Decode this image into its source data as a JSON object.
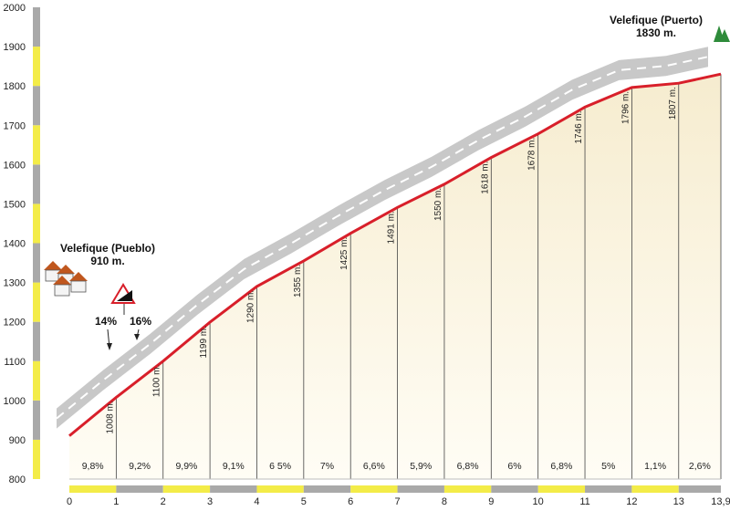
{
  "chart_data": {
    "type": "area",
    "title": "",
    "xlabel": "",
    "ylabel": "",
    "ylim": [
      800,
      2000
    ],
    "xlim": [
      0,
      13.9
    ],
    "y_ticks": [
      800,
      900,
      1000,
      1100,
      1200,
      1300,
      1400,
      1500,
      1600,
      1700,
      1800,
      1900,
      2000
    ],
    "x_ticks": [
      {
        "x": 0,
        "label": "0"
      },
      {
        "x": 1,
        "label": "1"
      },
      {
        "x": 2,
        "label": "2"
      },
      {
        "x": 3,
        "label": "3"
      },
      {
        "x": 4,
        "label": "4"
      },
      {
        "x": 5,
        "label": "5"
      },
      {
        "x": 6,
        "label": "6"
      },
      {
        "x": 7,
        "label": "7"
      },
      {
        "x": 8,
        "label": "8"
      },
      {
        "x": 9,
        "label": "9"
      },
      {
        "x": 10,
        "label": "10"
      },
      {
        "x": 11,
        "label": "11"
      },
      {
        "x": 12,
        "label": "12"
      },
      {
        "x": 13,
        "label": "13"
      },
      {
        "x": 13.9,
        "label": "13,9"
      }
    ],
    "profile": [
      {
        "x": 0,
        "y": 910,
        "label": ""
      },
      {
        "x": 1,
        "y": 1008,
        "label": "1008 m."
      },
      {
        "x": 2,
        "y": 1100,
        "label": "1100 m."
      },
      {
        "x": 3,
        "y": 1199,
        "label": "1199 m."
      },
      {
        "x": 4,
        "y": 1290,
        "label": "1290 m."
      },
      {
        "x": 5,
        "y": 1355,
        "label": "1355 m."
      },
      {
        "x": 6,
        "y": 1425,
        "label": "1425 m."
      },
      {
        "x": 7,
        "y": 1491,
        "label": "1491 m."
      },
      {
        "x": 8,
        "y": 1550,
        "label": "1550 m."
      },
      {
        "x": 9,
        "y": 1618,
        "label": "1618 m."
      },
      {
        "x": 10,
        "y": 1678,
        "label": "1678 m."
      },
      {
        "x": 11,
        "y": 1746,
        "label": "1746 m."
      },
      {
        "x": 12,
        "y": 1796,
        "label": "1796 m."
      },
      {
        "x": 13,
        "y": 1807,
        "label": "1807 m."
      },
      {
        "x": 13.9,
        "y": 1830,
        "label": ""
      }
    ],
    "gradients": [
      "9,8%",
      "9,2%",
      "9,9%",
      "9,1%",
      "6 5%",
      "7%",
      "6,6%",
      "5,9%",
      "6,8%",
      "6%",
      "6,8%",
      "5%",
      "1,1%",
      "2,6%"
    ],
    "annotations": {
      "start_name": "Velefique (Pueblo)",
      "start_alt": "910 m.",
      "end_name": "Velefique (Puerto)",
      "end_alt": "1830 m.",
      "slope_a": "14%",
      "slope_b": "16%"
    },
    "colors": {
      "profile_line": "#d81f2a",
      "road": "#c8c8c8",
      "road_dash": "#ffffff",
      "fill_top": "#f6eccf",
      "fill_bottom": "#fffdf5",
      "axis_yellow": "#f3ec48",
      "axis_gray": "#a9a9a9",
      "icon_green": "#2e8b3a"
    }
  }
}
